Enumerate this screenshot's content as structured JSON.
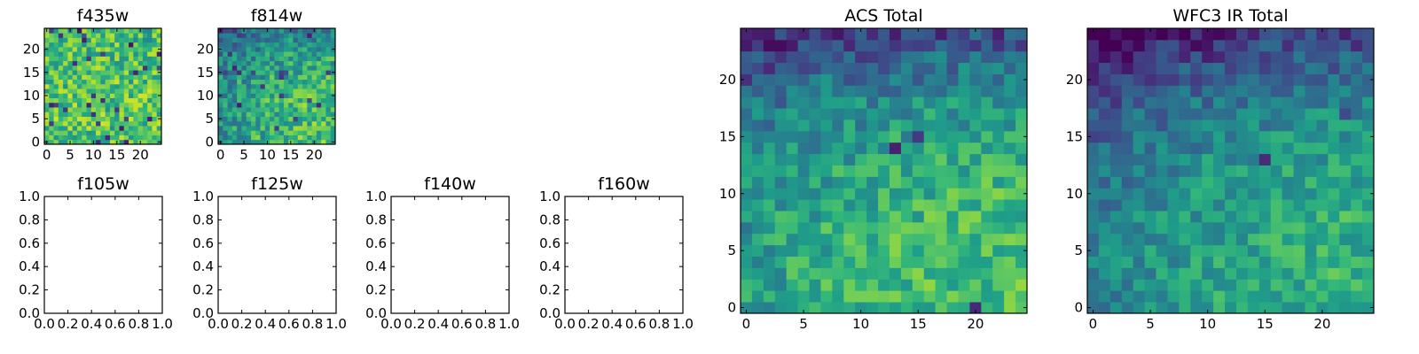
{
  "figure": {
    "background": "#ffffff",
    "colormap": "viridis"
  },
  "chart_data": [
    {
      "type": "heatmap",
      "title": "f435w",
      "grid_size": [
        25,
        25
      ],
      "xticks": [
        0,
        5,
        10,
        15,
        20
      ],
      "yticks": [
        0,
        5,
        10,
        15,
        20
      ],
      "xtick_labels": [
        "0",
        "5",
        "10",
        "15",
        "20"
      ],
      "ytick_labels": [
        "0",
        "5",
        "10",
        "15",
        "20"
      ],
      "xlim": [
        -0.5,
        24.5
      ],
      "ylim": [
        -0.5,
        24.5
      ],
      "value_range": [
        0,
        1
      ],
      "origin": "lower",
      "pattern": {
        "seed": 11,
        "mean": 0.72,
        "noise": 0.22,
        "left_dim": 0.0,
        "top_dim": 0.05,
        "outlier_rate": 0.04
      }
    },
    {
      "type": "heatmap",
      "title": "f814w",
      "grid_size": [
        25,
        25
      ],
      "xticks": [
        0,
        5,
        10,
        15,
        20
      ],
      "yticks": [
        0,
        5,
        10,
        15,
        20
      ],
      "xtick_labels": [
        "0",
        "5",
        "10",
        "15",
        "20"
      ],
      "ytick_labels": [
        "0",
        "5",
        "10",
        "15",
        "20"
      ],
      "xlim": [
        -0.5,
        24.5
      ],
      "ylim": [
        -0.5,
        24.5
      ],
      "value_range": [
        0,
        1
      ],
      "origin": "lower",
      "pattern": {
        "seed": 23,
        "mean": 0.7,
        "noise": 0.2,
        "left_dim": 0.3,
        "top_dim": 0.25,
        "outlier_rate": 0.02
      }
    },
    {
      "type": "heatmap",
      "title": "f105w",
      "empty": true,
      "xticks": [
        0.0,
        0.2,
        0.4,
        0.6,
        0.8,
        1.0
      ],
      "yticks": [
        0.0,
        0.2,
        0.4,
        0.6,
        0.8,
        1.0
      ],
      "xtick_labels": [
        "0.0",
        "0.2",
        "0.4",
        "0.6",
        "0.8",
        "1.0"
      ],
      "ytick_labels": [
        "0.0",
        "0.2",
        "0.4",
        "0.6",
        "0.8",
        "1.0"
      ],
      "xlim": [
        0,
        1
      ],
      "ylim": [
        0,
        1
      ]
    },
    {
      "type": "heatmap",
      "title": "f125w",
      "empty": true,
      "xticks": [
        0.0,
        0.2,
        0.4,
        0.6,
        0.8,
        1.0
      ],
      "yticks": [
        0.0,
        0.2,
        0.4,
        0.6,
        0.8,
        1.0
      ],
      "xtick_labels": [
        "0.0",
        "0.2",
        "0.4",
        "0.6",
        "0.8",
        "1.0"
      ],
      "ytick_labels": [
        "0.0",
        "0.2",
        "0.4",
        "0.6",
        "0.8",
        "1.0"
      ],
      "xlim": [
        0,
        1
      ],
      "ylim": [
        0,
        1
      ]
    },
    {
      "type": "heatmap",
      "title": "f140w",
      "empty": true,
      "xticks": [
        0.0,
        0.2,
        0.4,
        0.6,
        0.8,
        1.0
      ],
      "yticks": [
        0.0,
        0.2,
        0.4,
        0.6,
        0.8,
        1.0
      ],
      "xtick_labels": [
        "0.0",
        "0.2",
        "0.4",
        "0.6",
        "0.8",
        "1.0"
      ],
      "ytick_labels": [
        "0.0",
        "0.2",
        "0.4",
        "0.6",
        "0.8",
        "1.0"
      ],
      "xlim": [
        0,
        1
      ],
      "ylim": [
        0,
        1
      ]
    },
    {
      "type": "heatmap",
      "title": "f160w",
      "empty": true,
      "xticks": [
        0.0,
        0.2,
        0.4,
        0.6,
        0.8,
        1.0
      ],
      "yticks": [
        0.0,
        0.2,
        0.4,
        0.6,
        0.8,
        1.0
      ],
      "xtick_labels": [
        "0.0",
        "0.2",
        "0.4",
        "0.6",
        "0.8",
        "1.0"
      ],
      "ytick_labels": [
        "0.0",
        "0.2",
        "0.4",
        "0.6",
        "0.8",
        "1.0"
      ],
      "xlim": [
        0,
        1
      ],
      "ylim": [
        0,
        1
      ]
    },
    {
      "type": "heatmap",
      "title": "ACS Total",
      "grid_size": [
        25,
        25
      ],
      "xticks": [
        0,
        5,
        10,
        15,
        20
      ],
      "yticks": [
        0,
        5,
        10,
        15,
        20
      ],
      "xtick_labels": [
        "0",
        "5",
        "10",
        "15",
        "20"
      ],
      "ytick_labels": [
        "0",
        "5",
        "10",
        "15",
        "20"
      ],
      "xlim": [
        -0.5,
        24.5
      ],
      "ylim": [
        -0.5,
        24.5
      ],
      "value_range": [
        0,
        1
      ],
      "origin": "lower",
      "pattern": {
        "seed": 37,
        "mean": 0.7,
        "noise": 0.16,
        "left_dim": 0.25,
        "top_dim": 0.45,
        "outlier_rate": 0.01
      }
    },
    {
      "type": "heatmap",
      "title": "WFC3 IR Total",
      "grid_size": [
        25,
        25
      ],
      "xticks": [
        0,
        5,
        10,
        15,
        20
      ],
      "yticks": [
        0,
        5,
        10,
        15,
        20
      ],
      "xtick_labels": [
        "0",
        "5",
        "10",
        "15",
        "20"
      ],
      "ytick_labels": [
        "0",
        "5",
        "10",
        "15",
        "20"
      ],
      "xlim": [
        -0.5,
        24.5
      ],
      "ylim": [
        -0.5,
        24.5
      ],
      "value_range": [
        0,
        1
      ],
      "origin": "lower",
      "pattern": {
        "seed": 53,
        "mean": 0.64,
        "noise": 0.14,
        "left_dim": 0.35,
        "top_dim": 0.45,
        "outlier_rate": 0.01
      }
    }
  ]
}
